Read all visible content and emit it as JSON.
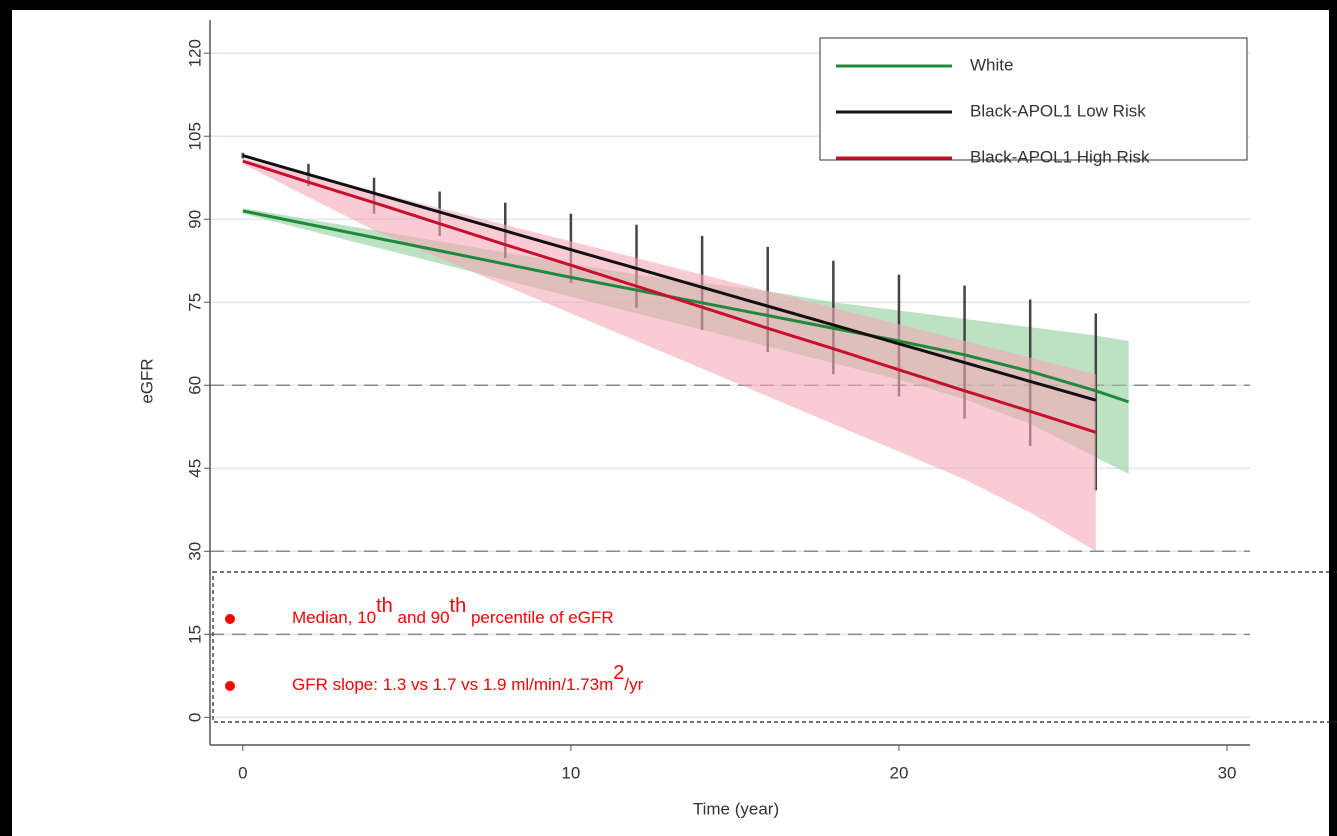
{
  "chart_data": {
    "type": "line",
    "x_label": "Time (year)",
    "y_label": "eGFR",
    "x": [
      0,
      2,
      4,
      6,
      8,
      10,
      12,
      14,
      16,
      18,
      20,
      22,
      24,
      26,
      27
    ],
    "xlim": [
      -1,
      30.7
    ],
    "ylim": [
      -5,
      126
    ],
    "xticks": [
      0,
      10,
      20,
      30
    ],
    "yticks": [
      0,
      15,
      30,
      45,
      60,
      75,
      90,
      105,
      120
    ],
    "grid": true,
    "grid_color": "#dde9f0",
    "reference_lines": [
      60,
      30,
      15
    ],
    "legend_position": "upper right",
    "series": [
      {
        "name": "White",
        "color": "#1f8a3c",
        "band_color": "#8fcf9b",
        "band_style": "area",
        "values": [
          91.5,
          89.1,
          86.7,
          84.3,
          81.9,
          79.5,
          77.2,
          74.9,
          72.6,
          70.3,
          68,
          65.5,
          62.5,
          59,
          57
        ],
        "upper": [
          92,
          90,
          88,
          86,
          84,
          82,
          80,
          78.5,
          77,
          75,
          73.5,
          72,
          70.5,
          69,
          68
        ],
        "lower": [
          91,
          88,
          85,
          82,
          79,
          76,
          73,
          70,
          67,
          64,
          61,
          57.5,
          53,
          47,
          44
        ]
      },
      {
        "name": "Black-APOL1 Low Risk",
        "color": "#111111",
        "band_color": "#444444",
        "band_style": "bars",
        "values": [
          101.5,
          98.1,
          94.7,
          91.3,
          87.9,
          84.5,
          81.1,
          77.7,
          74.3,
          70.9,
          67.5,
          64.1,
          60.7,
          57.3,
          null
        ],
        "upper": [
          102,
          100,
          97.5,
          95,
          93,
          91,
          89,
          87,
          85,
          82.5,
          80,
          78,
          75.5,
          73,
          null
        ],
        "lower": [
          101,
          96,
          91,
          87,
          83,
          78.5,
          74,
          70,
          66,
          62,
          58,
          54,
          49,
          41,
          null
        ]
      },
      {
        "name": "Black-APOL1 High Risk",
        "color": "#c8102e",
        "band_color": "#f5a9b8",
        "band_style": "area",
        "values": [
          100.5,
          96.7,
          93,
          89.2,
          85.4,
          81.7,
          77.9,
          74.1,
          70.3,
          66.6,
          62.8,
          59,
          55.3,
          51.5,
          null
        ],
        "upper": [
          101,
          98,
          95,
          92,
          89,
          86,
          83,
          80,
          77,
          74,
          71,
          68,
          65,
          62,
          null
        ],
        "lower": [
          100,
          94,
          88,
          83,
          78,
          73,
          68,
          63,
          58,
          53,
          48,
          43,
          37,
          30,
          null
        ]
      }
    ],
    "annotation_color": "#ff0000",
    "annotations": [
      [
        "Median, 10",
        "th",
        " and 90",
        "th",
        " percentile of eGFR"
      ],
      [
        "GFR slope:  1.3 vs 1.7 vs 1.9 ml/min/1.73m",
        "2",
        "/yr"
      ]
    ]
  }
}
